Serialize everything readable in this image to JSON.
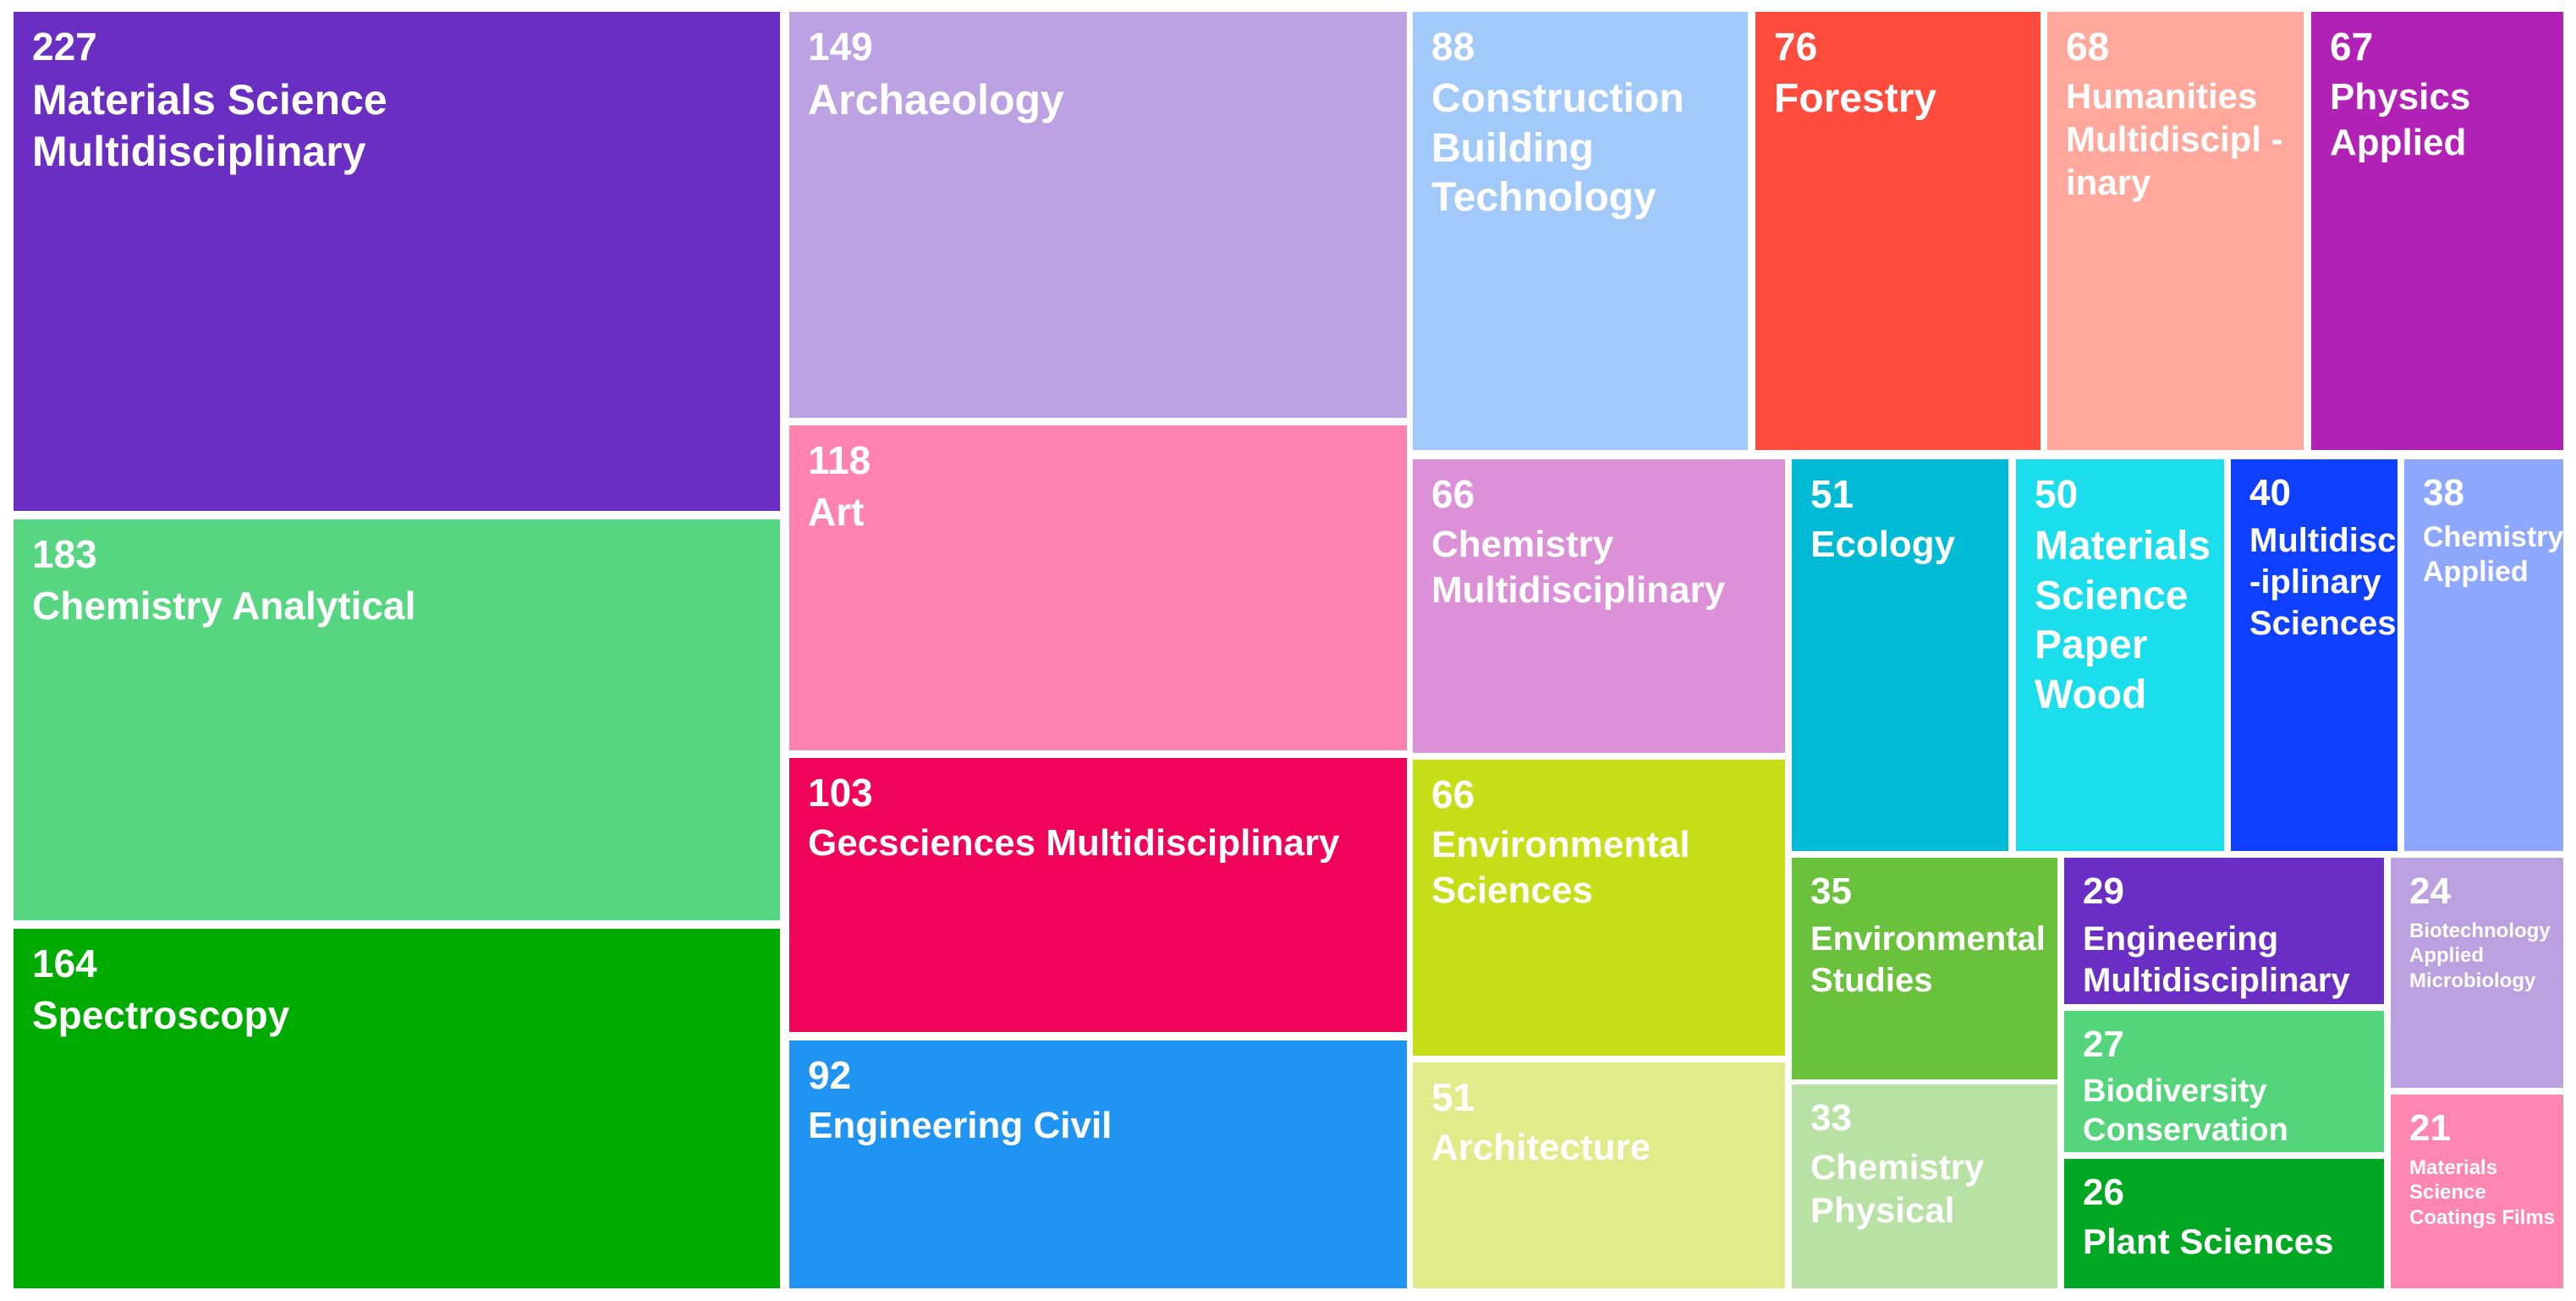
{
  "chart_data": {
    "type": "treemap",
    "nodes": [
      {
        "value": 227,
        "label": "Materials   Science Multidisciplinary",
        "color": "#6A2EC3"
      },
      {
        "value": 183,
        "label": "Chemistry Analytical",
        "color": "#57D681"
      },
      {
        "value": 164,
        "label": "Spectroscopy",
        "color": "#00AB00"
      },
      {
        "value": 149,
        "label": "Archaeology",
        "color": "#BCA2E2"
      },
      {
        "value": 118,
        "label": "Art",
        "color": "#FF83AE"
      },
      {
        "value": 103,
        "label": "Gecsciences Multidisciplinary",
        "color": "#F00459"
      },
      {
        "value": 92,
        "label": "Engineering Civil",
        "color": "#1F94F3"
      },
      {
        "value": 88,
        "label": "Construction Building Technology",
        "color": "#A1C9FA"
      },
      {
        "value": 76,
        "label": "Forestry",
        "color": "#FF4C3C"
      },
      {
        "value": 68,
        "label": "Humanities Multidiscipl -inary",
        "color": "#FFA89B"
      },
      {
        "value": 67,
        "label": "Physics Applied",
        "color": "#B121B5"
      },
      {
        "value": 66,
        "label": "Chemistry Multidisciplinary",
        "color": "#DC90D8"
      },
      {
        "value": 66,
        "label": "Environmental Sciences",
        "color": "#C6DE17"
      },
      {
        "value": 51,
        "label": "Architecture",
        "color": "#E0EB8A"
      },
      {
        "value": 51,
        "label": "Ecology",
        "color": "#00BBD6"
      },
      {
        "value": 50,
        "label": "Materials Science Paper Wood",
        "color": "#1ADEEB"
      },
      {
        "value": 40,
        "label": "Multidisc -iplinary Sciences",
        "color": "#0F40FF"
      },
      {
        "value": 38,
        "label": "Chemistry Applied",
        "color": "#8EA8FF"
      },
      {
        "value": 35,
        "label": "Environmental Studies",
        "color": "#6AC23C"
      },
      {
        "value": 33,
        "label": "Chemistry Physical",
        "color": "#B8E1A4"
      },
      {
        "value": 29,
        "label": "Engineering Multidisciplinary",
        "color": "#6B2EC4"
      },
      {
        "value": 27,
        "label": "Biodiversity Conservation",
        "color": "#54D47B"
      },
      {
        "value": 26,
        "label": "Plant Sciences",
        "color": "#00A722"
      },
      {
        "value": 24,
        "label": "Biotechnology Applied Microbiology",
        "color": "#BCA1E0"
      },
      {
        "value": 21,
        "label": "Materials Science Coatings Films",
        "color": "#FF86B0"
      }
    ]
  }
}
